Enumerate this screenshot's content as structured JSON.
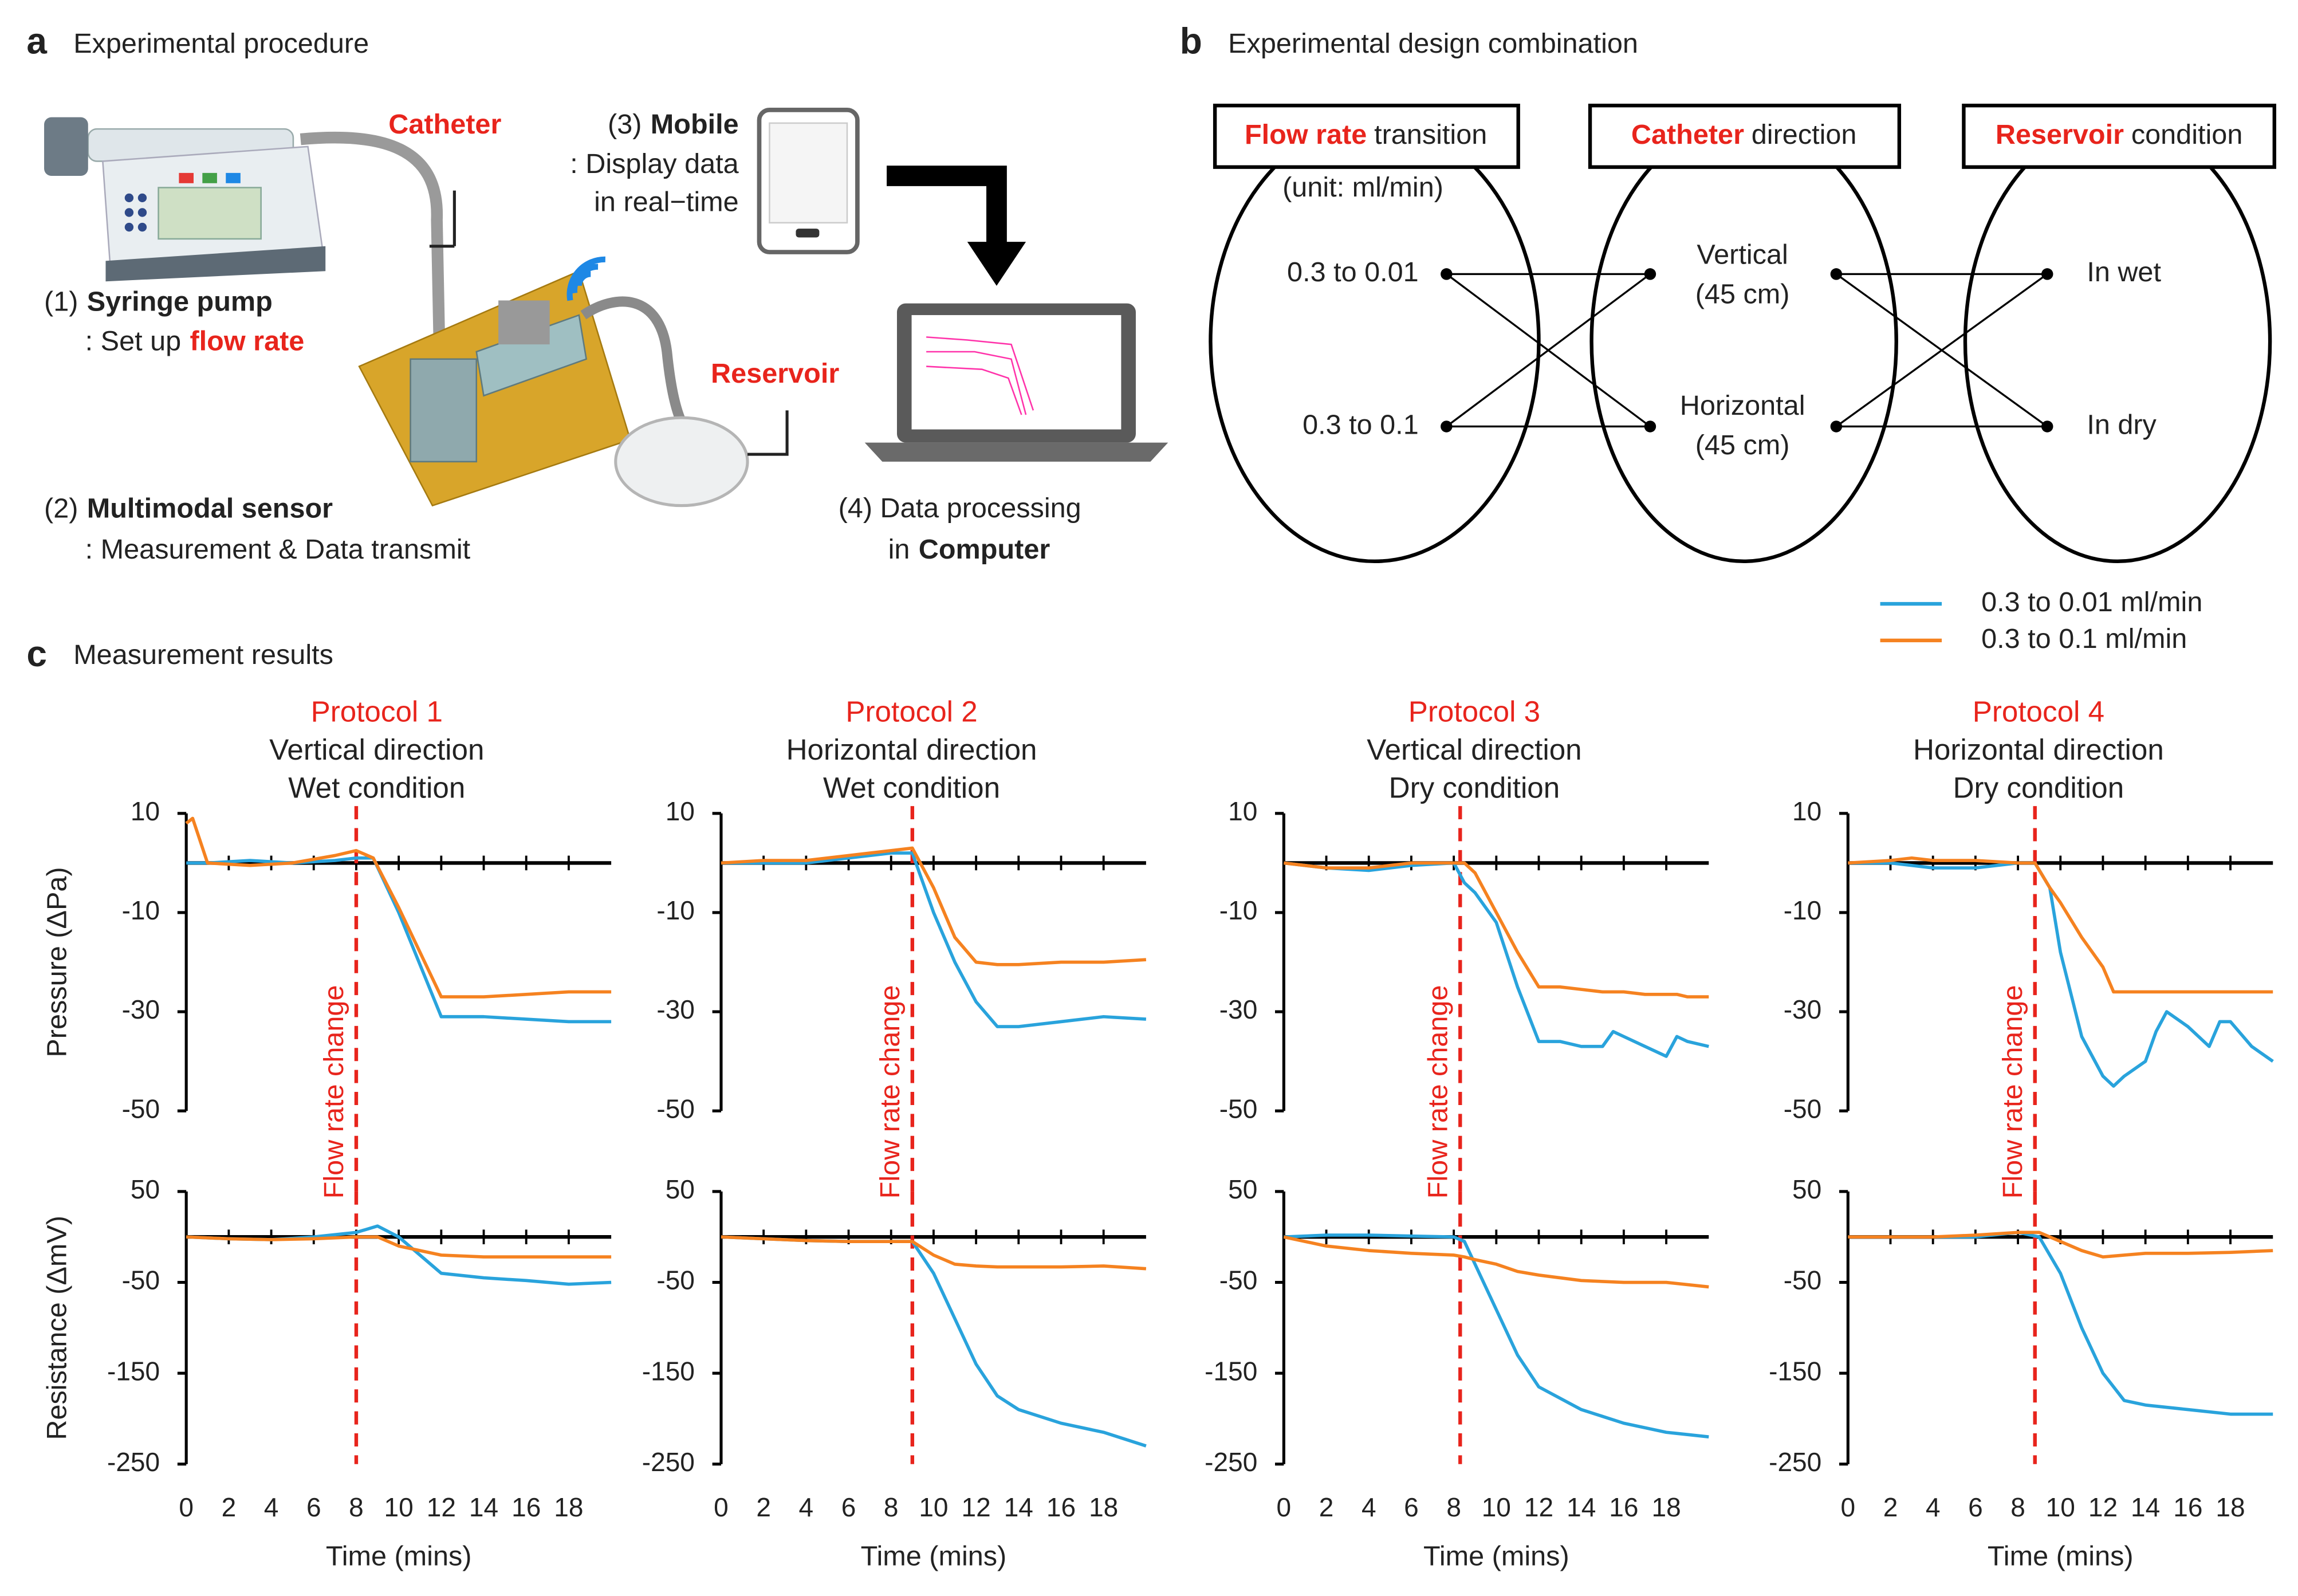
{
  "panel_a": {
    "label": "a",
    "title": "Experimental procedure",
    "catheter": "Catheter",
    "mobile": {
      "number": "(3)",
      "name": "Mobile",
      "line1": ": Display data",
      "line2": "in real−time"
    },
    "pump": {
      "number": "(1)",
      "name": "Syringe pump",
      "line1": ": Set up",
      "line1_red": "flow rate"
    },
    "reservoir": "Reservoir",
    "sensor": {
      "number": "(2)",
      "name": "Multimodal sensor",
      "line1": ": Measurement & Data transmit"
    },
    "computer": {
      "line1": "(4) Data processing",
      "line2": "in",
      "name": "Computer"
    }
  },
  "panel_b": {
    "label": "b",
    "title": "Experimental design combination",
    "boxes": [
      {
        "red": "Flow rate",
        "rest": "transition"
      },
      {
        "red": "Catheter",
        "rest": "direction"
      },
      {
        "red": "Reservoir",
        "rest": "condition"
      }
    ],
    "unit": "(unit: ml/min)",
    "flow": [
      "0.3 to 0.01",
      "0.3 to 0.1"
    ],
    "catheter": [
      [
        "Vertical",
        "(45 cm)"
      ],
      [
        "Horizontal",
        "(45 cm)"
      ]
    ],
    "reservoir": [
      "In wet",
      "In dry"
    ]
  },
  "panel_c": {
    "label": "c",
    "title": "Measurement results",
    "legend": [
      {
        "name": "0.3 to 0.01 ml/min",
        "color": "#29a3dc"
      },
      {
        "name": "0.3 to 0.1 ml/min",
        "color": "#f58220"
      }
    ]
  },
  "chart_data": [
    {
      "type": "line",
      "title": "Protocol 1",
      "subtitle": [
        "Vertical direction",
        "Wet condition"
      ],
      "ylabel": "Pressure (ΔPa)",
      "x": [
        0,
        0.3,
        1,
        3,
        5,
        7,
        8,
        8.8,
        10,
        12,
        14,
        16,
        18,
        20
      ],
      "series": [
        {
          "color": "#29a3dc",
          "values": [
            0,
            0,
            0,
            0.5,
            0,
            0.5,
            1,
            1,
            -10,
            -31,
            -31,
            -31.5,
            -32,
            -32
          ]
        },
        {
          "color": "#f58220",
          "values": [
            8,
            9,
            0,
            -0.5,
            0,
            1.5,
            2.5,
            1,
            -9,
            -27,
            -27,
            -26.5,
            -26,
            -26
          ]
        }
      ],
      "xlim": [
        0,
        20
      ],
      "ylim": [
        -50,
        10
      ],
      "xticks": [
        0,
        2,
        4,
        6,
        8,
        10,
        12,
        14,
        16,
        18
      ],
      "yticks": [
        10,
        -10,
        -30,
        -50
      ],
      "annotation": {
        "text": "Flow rate change",
        "x": 8
      }
    },
    {
      "type": "line",
      "title": "Protocol 2",
      "subtitle": [
        "Horizontal direction",
        "Wet condition"
      ],
      "x": [
        0,
        2,
        4,
        6,
        8,
        9,
        10,
        11,
        12,
        13,
        14,
        16,
        18,
        20
      ],
      "series": [
        {
          "color": "#29a3dc",
          "values": [
            0,
            0,
            0,
            1,
            2,
            2,
            -10,
            -20,
            -28,
            -33,
            -33,
            -32,
            -31,
            -31.5
          ]
        },
        {
          "color": "#f58220",
          "values": [
            0,
            0.5,
            0.5,
            1.5,
            2.5,
            3,
            -5,
            -15,
            -20,
            -20.5,
            -20.5,
            -20,
            -20,
            -19.5
          ]
        }
      ],
      "xlim": [
        0,
        20
      ],
      "ylim": [
        -50,
        10
      ],
      "xticks": [
        0,
        2,
        4,
        6,
        8,
        10,
        12,
        14,
        16,
        18
      ],
      "yticks": [
        10,
        -10,
        -30,
        -50
      ],
      "annotation": {
        "text": "Flow rate change",
        "x": 9
      }
    },
    {
      "type": "line",
      "title": "Protocol 3",
      "subtitle": [
        "Vertical direction",
        "Dry condition"
      ],
      "x": [
        0,
        2,
        4,
        6,
        8,
        8.5,
        9,
        10,
        11,
        12,
        13,
        14,
        15,
        15.5,
        16,
        17,
        18,
        18.5,
        19,
        20
      ],
      "series": [
        {
          "color": "#29a3dc",
          "values": [
            0,
            -1,
            -1.5,
            -0.5,
            0,
            -4,
            -6,
            -12,
            -25,
            -36,
            -36,
            -37,
            -37,
            -34,
            -35,
            -37,
            -39,
            -35,
            -36,
            -37
          ]
        },
        {
          "color": "#f58220",
          "values": [
            0,
            -1,
            -1,
            0,
            0,
            0,
            -2,
            -10,
            -18,
            -25,
            -25,
            -25.5,
            -26,
            -26,
            -26,
            -26.5,
            -26.5,
            -26.5,
            -27,
            -27
          ]
        }
      ],
      "xlim": [
        0,
        20
      ],
      "ylim": [
        -50,
        10
      ],
      "xticks": [
        0,
        2,
        4,
        6,
        8,
        10,
        12,
        14,
        16,
        18
      ],
      "yticks": [
        10,
        -10,
        -30,
        -50
      ],
      "annotation": {
        "text": "Flow rate change",
        "x": 8.3
      }
    },
    {
      "type": "line",
      "title": "Protocol 4",
      "subtitle": [
        "Horizontal direction",
        "Dry condition"
      ],
      "x": [
        0,
        2,
        3,
        4,
        6,
        8,
        8.8,
        9.5,
        10,
        11,
        12,
        12.5,
        13,
        14,
        14.5,
        15,
        16,
        17,
        17.5,
        18,
        19,
        20
      ],
      "series": [
        {
          "color": "#29a3dc",
          "values": [
            0,
            0,
            -0.5,
            -1,
            -1,
            0,
            0,
            -5,
            -18,
            -35,
            -43,
            -45,
            -43,
            -40,
            -34,
            -30,
            -33,
            -37,
            -32,
            -32,
            -37,
            -40
          ]
        },
        {
          "color": "#f58220",
          "values": [
            0,
            0.5,
            1,
            0.5,
            0.5,
            0,
            0,
            -5,
            -8,
            -15,
            -21,
            -26,
            -26,
            -26,
            -26,
            -26,
            -26,
            -26,
            -26,
            -26,
            -26,
            -26
          ]
        }
      ],
      "xlim": [
        0,
        20
      ],
      "ylim": [
        -50,
        10
      ],
      "xticks": [
        0,
        2,
        4,
        6,
        8,
        10,
        12,
        14,
        16,
        18
      ],
      "yticks": [
        10,
        -10,
        -30,
        -50
      ],
      "annotation": {
        "text": "Flow rate change",
        "x": 8.8
      }
    },
    {
      "type": "line",
      "ylabel": "Resistance (ΔmV)",
      "xlabel": "Time (mins)",
      "x": [
        0,
        2,
        4,
        6,
        8,
        9,
        10,
        12,
        14,
        16,
        18,
        20
      ],
      "series": [
        {
          "color": "#29a3dc",
          "values": [
            0,
            -2,
            -3,
            0,
            5,
            12,
            0,
            -40,
            -45,
            -48,
            -52,
            -50
          ]
        },
        {
          "color": "#f58220",
          "values": [
            0,
            -2,
            -3,
            -2,
            0,
            0,
            -10,
            -20,
            -22,
            -22,
            -22,
            -22
          ]
        }
      ],
      "xlim": [
        0,
        20
      ],
      "ylim": [
        -250,
        50
      ],
      "xticks": [
        0,
        2,
        4,
        6,
        8,
        10,
        12,
        14,
        16,
        18
      ],
      "yticks": [
        50,
        -50,
        -150,
        -250
      ],
      "vline_x": 8
    },
    {
      "type": "line",
      "xlabel": "Time (mins)",
      "x": [
        0,
        2,
        4,
        6,
        8,
        9,
        10,
        11,
        12,
        13,
        14,
        16,
        18,
        20
      ],
      "series": [
        {
          "color": "#29a3dc",
          "values": [
            0,
            -2,
            -4,
            -5,
            -5,
            -5,
            -40,
            -90,
            -140,
            -175,
            -190,
            -205,
            -215,
            -230
          ]
        },
        {
          "color": "#f58220",
          "values": [
            0,
            -2,
            -4,
            -5,
            -5,
            -5,
            -20,
            -30,
            -32,
            -33,
            -33,
            -33,
            -32,
            -35
          ]
        }
      ],
      "xlim": [
        0,
        20
      ],
      "ylim": [
        -250,
        50
      ],
      "xticks": [
        0,
        2,
        4,
        6,
        8,
        10,
        12,
        14,
        16,
        18
      ],
      "yticks": [
        50,
        -50,
        -150,
        -250
      ],
      "vline_x": 9
    },
    {
      "type": "line",
      "xlabel": "Time (mins)",
      "x": [
        0,
        2,
        4,
        6,
        8,
        8.5,
        9,
        10,
        11,
        12,
        14,
        16,
        18,
        20
      ],
      "series": [
        {
          "color": "#29a3dc",
          "values": [
            0,
            2,
            2,
            1,
            0,
            -5,
            -30,
            -80,
            -130,
            -165,
            -190,
            -205,
            -215,
            -220
          ]
        },
        {
          "color": "#f58220",
          "values": [
            0,
            -10,
            -15,
            -18,
            -20,
            -22,
            -25,
            -30,
            -38,
            -42,
            -48,
            -50,
            -50,
            -55
          ]
        }
      ],
      "xlim": [
        0,
        20
      ],
      "ylim": [
        -250,
        50
      ],
      "xticks": [
        0,
        2,
        4,
        6,
        8,
        10,
        12,
        14,
        16,
        18
      ],
      "yticks": [
        50,
        -50,
        -150,
        -250
      ],
      "vline_x": 8.3
    },
    {
      "type": "line",
      "xlabel": "Time (mins)",
      "x": [
        0,
        2,
        4,
        6,
        8,
        9,
        10,
        11,
        12,
        13,
        14,
        16,
        18,
        20
      ],
      "series": [
        {
          "color": "#29a3dc",
          "values": [
            0,
            0,
            0,
            0,
            5,
            0,
            -40,
            -100,
            -150,
            -180,
            -185,
            -190,
            -195,
            -195
          ]
        },
        {
          "color": "#f58220",
          "values": [
            0,
            0,
            0,
            2,
            5,
            5,
            -5,
            -15,
            -22,
            -20,
            -18,
            -18,
            -17,
            -15
          ]
        }
      ],
      "xlim": [
        0,
        20
      ],
      "ylim": [
        -250,
        50
      ],
      "xticks": [
        0,
        2,
        4,
        6,
        8,
        10,
        12,
        14,
        16,
        18
      ],
      "yticks": [
        50,
        -50,
        -150,
        -250
      ],
      "vline_x": 8.8
    }
  ]
}
